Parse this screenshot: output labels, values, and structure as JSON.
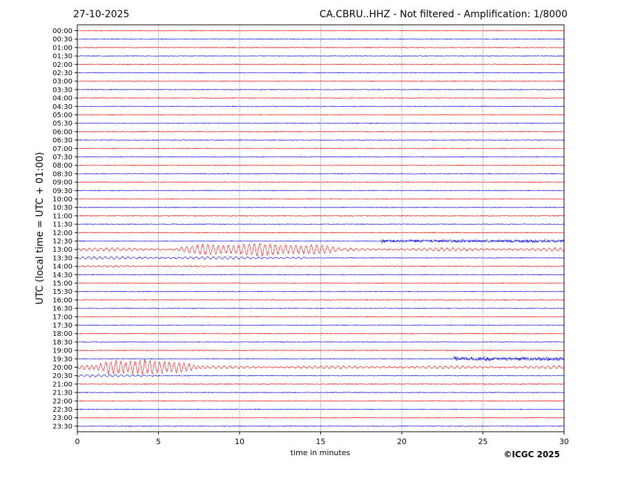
{
  "header": {
    "date": "27-10-2025",
    "station_title": "CA.CBRU..HHZ - Not filtered - Amplification: 1/8000"
  },
  "footer": {
    "credit": "©ICGC 2025"
  },
  "chart_data": {
    "type": "line",
    "subtype": "helicorder",
    "xlabel": "time in minutes",
    "ylabel": "UTC (local time = UTC + 01:00)",
    "xlim": [
      0,
      30
    ],
    "x_ticks": [
      0,
      5,
      10,
      15,
      20,
      25,
      30
    ],
    "grid": "vertical dotted lines at each x tick",
    "trace_colors": [
      "#ff0000",
      "#0000ff"
    ],
    "row_labels": [
      "00:00",
      "00:30",
      "01:00",
      "01:30",
      "02:00",
      "02:30",
      "03:00",
      "03:30",
      "04:00",
      "04:30",
      "05:00",
      "05:30",
      "06:00",
      "06:30",
      "07:00",
      "07:30",
      "08:00",
      "08:30",
      "09:00",
      "09:30",
      "10:00",
      "10:30",
      "11:00",
      "11:30",
      "12:00",
      "12:30",
      "13:00",
      "13:30",
      "14:00",
      "14:30",
      "15:00",
      "15:30",
      "16:00",
      "16:30",
      "17:00",
      "17:30",
      "18:00",
      "18:30",
      "19:00",
      "19:30",
      "20:00",
      "20:30",
      "21:00",
      "21:30",
      "22:00",
      "22:30",
      "23:00",
      "23:30"
    ],
    "events": [
      {
        "row": "12:30",
        "start_min": 18.7,
        "end_min": 30,
        "type": "noise_burst",
        "amplitude": 0.45,
        "period_min": 0.08
      },
      {
        "row": "13:00",
        "start_min": 0,
        "end_min": 30,
        "type": "long_period",
        "amplitude": 0.35,
        "period_min": 0.35
      },
      {
        "row": "13:00",
        "start_min": 5.5,
        "end_min": 16.5,
        "type": "surface_waves",
        "amplitude": 1.5,
        "period_min": 0.32
      },
      {
        "row": "13:30",
        "start_min": 0,
        "end_min": 14,
        "type": "long_period",
        "amplitude": 0.3,
        "period_min": 0.35
      },
      {
        "row": "14:00",
        "start_min": 0,
        "end_min": 8,
        "type": "long_period",
        "amplitude": 0.15,
        "period_min": 0.35
      },
      {
        "row": "19:30",
        "start_min": 23.2,
        "end_min": 30,
        "type": "noise_burst",
        "amplitude": 0.55,
        "period_min": 0.08
      },
      {
        "row": "20:00",
        "start_min": 0,
        "end_min": 30,
        "type": "long_period",
        "amplitude": 0.3,
        "period_min": 0.35
      },
      {
        "row": "20:00",
        "start_min": 0,
        "end_min": 8,
        "type": "surface_waves",
        "amplitude": 1.8,
        "period_min": 0.3
      },
      {
        "row": "20:30",
        "start_min": 0,
        "end_min": 5,
        "type": "long_period",
        "amplitude": 0.25,
        "period_min": 0.35
      }
    ]
  }
}
